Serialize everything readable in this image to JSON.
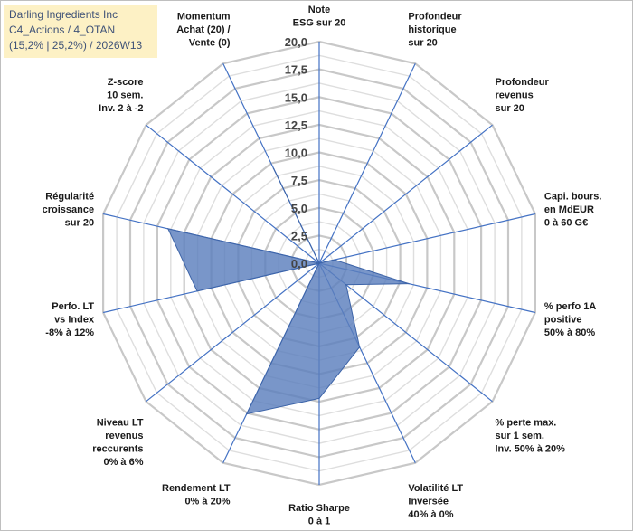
{
  "chart_data": {
    "type": "radar",
    "title_lines": [
      "Darling Ingredients Inc",
      "C4_Actions / 4_OTAN",
      "(15,2% | 25,2%) / 2026W13"
    ],
    "categories": [
      [
        "Note",
        "ESG sur 20"
      ],
      [
        "Profondeur",
        "historique",
        "sur 20"
      ],
      [
        "Profondeur",
        "revenus",
        "sur 20"
      ],
      [
        "Capi. bours.",
        "en MdEUR",
        "0 à 60 G€"
      ],
      [
        "% perfo 1A",
        "positive",
        "50% à 80%"
      ],
      [
        "% perte max.",
        "sur 1 sem.",
        "Inv. 50% à 20%"
      ],
      [
        "Volatilité LT",
        "Inversée",
        "40% à 0%"
      ],
      [
        "Ratio Sharpe",
        "0 à 1"
      ],
      [
        "Rendement LT",
        "0% à 20%"
      ],
      [
        "Niveau LT",
        "revenus",
        "reccurents",
        "0% à 6%"
      ],
      [
        "Perfo. LT",
        "vs Index",
        "-8% à 12%"
      ],
      [
        "Régularité",
        "croissance",
        "sur 20"
      ],
      [
        "Z-score",
        "10 sem.",
        "Inv. 2 à -2"
      ],
      [
        "Momentum",
        "Achat (20) /",
        "Vente (0)"
      ]
    ],
    "values": [
      0,
      0,
      0,
      1.4,
      8.3,
      3.1,
      8.4,
      12.2,
      15.1,
      0,
      11.3,
      14.0,
      0,
      9.5
    ],
    "rmin": 0,
    "rmax": 20,
    "tick_labels": [
      "0,0",
      "2,5",
      "5,0",
      "7,5",
      "10,0",
      "12,5",
      "15,0",
      "17,5",
      "20,0"
    ],
    "fill_color": "#5b7fbd",
    "grid": true
  }
}
